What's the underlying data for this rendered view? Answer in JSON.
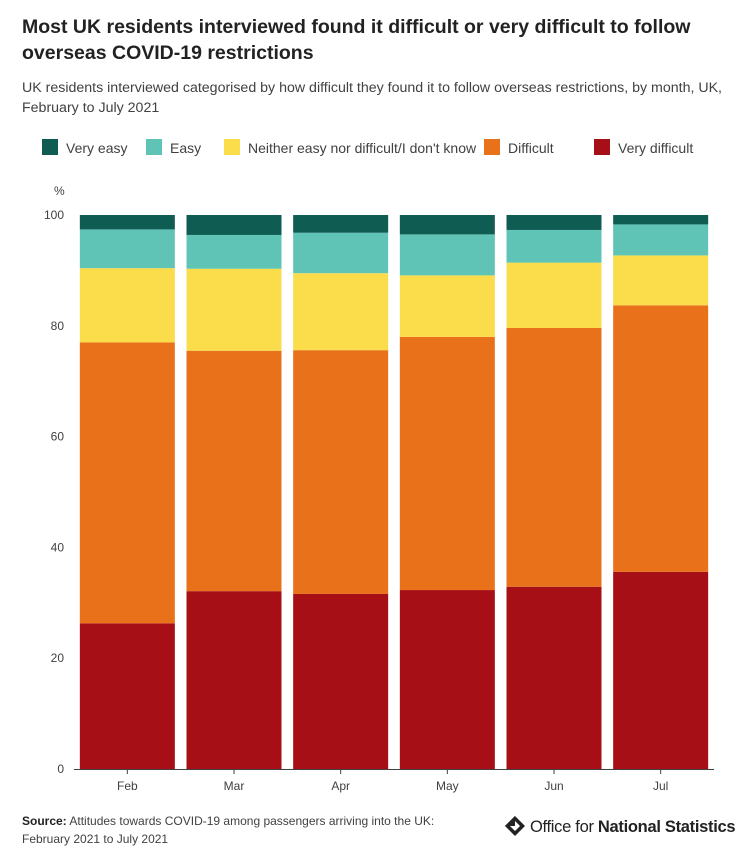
{
  "title": "Most UK residents interviewed found it difficult or very difficult to follow overseas COVID-19 restrictions",
  "subtitle": "UK residents interviewed categorised by how difficult they found it to follow overseas restrictions, by month, UK, February to July 2021",
  "source": {
    "label": "Source:",
    "text": " Attitudes towards COVID-19 among passengers arriving into the UK: February 2021 to July 2021"
  },
  "logo": {
    "prefix": "Office for ",
    "bold": "National Statistics"
  },
  "chart_data": {
    "type": "bar",
    "stacked": true,
    "ylabel": "%",
    "ylim": [
      0,
      100
    ],
    "yticks": [
      0,
      20,
      40,
      60,
      80,
      100
    ],
    "grid": false,
    "legend_position": "top",
    "categories": [
      "Feb",
      "Mar",
      "Apr",
      "May",
      "Jun",
      "Jul"
    ],
    "series": [
      {
        "name": "Very difficult",
        "color": "#a50f15",
        "values": [
          26.3,
          32.1,
          31.6,
          32.3,
          32.9,
          35.6
        ]
      },
      {
        "name": "Difficult",
        "color": "#e8711a",
        "values": [
          50.7,
          43.4,
          44.0,
          45.7,
          46.7,
          48.1
        ]
      },
      {
        "name": "Neither easy nor difficult/I don't know",
        "color": "#fbdd4b",
        "values": [
          13.4,
          14.8,
          13.9,
          11.1,
          11.8,
          9.0
        ]
      },
      {
        "name": "Easy",
        "color": "#5fc4b5",
        "values": [
          7.0,
          6.1,
          7.3,
          7.4,
          5.9,
          5.6
        ]
      },
      {
        "name": "Very easy",
        "color": "#0f5c53",
        "values": [
          2.6,
          3.6,
          3.2,
          3.5,
          2.7,
          1.7
        ]
      }
    ],
    "legend_order": [
      "Very easy",
      "Easy",
      "Neither easy nor difficult/I don't know",
      "Difficult",
      "Very difficult"
    ]
  }
}
